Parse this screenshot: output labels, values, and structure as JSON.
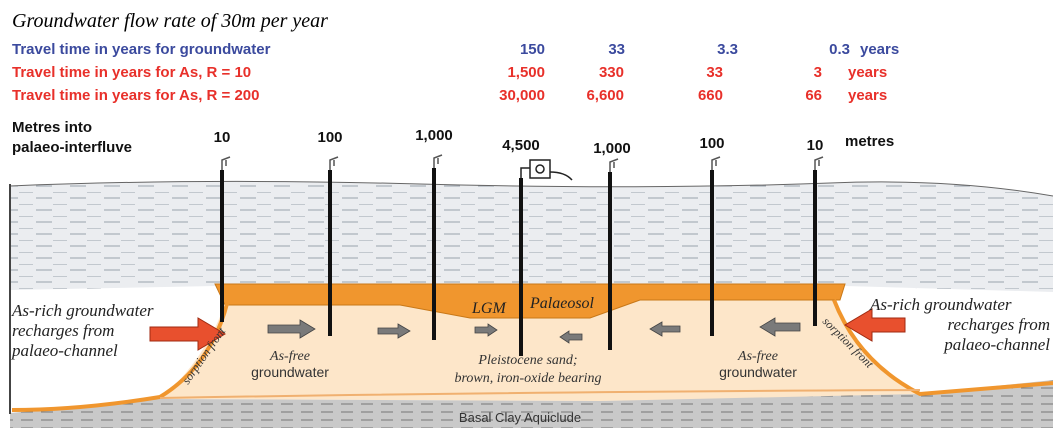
{
  "title": "Groundwater flow rate of 30m per year",
  "travel_times": [
    {
      "label": "Travel time in years for groundwater",
      "values": [
        "150",
        "33",
        "3.3",
        "0.3"
      ],
      "unit": "years"
    },
    {
      "label": "Travel time in years for As, R  =  10",
      "values": [
        "1,500",
        "330",
        "33",
        "3"
      ],
      "unit": "years"
    },
    {
      "label": "Travel time in years for As, R = 200",
      "values": [
        "30,000",
        "6,600",
        "660",
        "66"
      ],
      "unit": "years"
    }
  ],
  "distances": {
    "label": [
      "Metres into",
      "palaeo-interfluve"
    ],
    "values": [
      "10",
      "100",
      "1,000",
      "4,500",
      "1,000",
      "100",
      "10"
    ],
    "unit": "metres"
  },
  "labels": {
    "lgm": "LGM",
    "palaeosol": "Palaeosol",
    "recharge_left": [
      "As-rich groundwater",
      "recharges from",
      "palaeo-channel"
    ],
    "recharge_right": [
      "As-rich groundwater",
      "recharges from",
      "palaeo-channel"
    ],
    "sorption_left": "sorption front",
    "sorption_right": "sorption front",
    "as_free_left": [
      "As-free",
      "groundwater"
    ],
    "as_free_right": [
      "As-free",
      "groundwater"
    ],
    "sand": [
      "Pleistocene sand;",
      "brown, iron-oxide bearing"
    ],
    "basal_clay": "Basal Clay Aquiclude"
  }
}
